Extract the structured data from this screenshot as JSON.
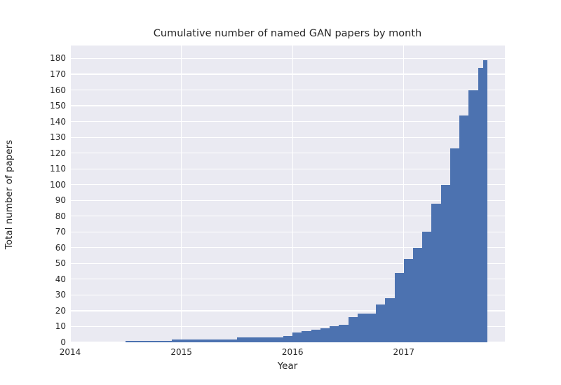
{
  "figure": {
    "kind": "matplotlib-seaborn-darkgrid",
    "background_color": "#ffffff",
    "plot_background_color": "#eaeaf2",
    "grid_color": "#ffffff",
    "text_color": "#262626"
  },
  "chart_data": {
    "type": "area",
    "subtype": "cumulative-monthly-step",
    "title": "Cumulative number of named GAN papers by month",
    "xlabel": "Year",
    "ylabel": "Total number of papers",
    "legend": null,
    "grid": true,
    "bar_color": "#4c72b0",
    "xlim": [
      2014,
      2017.909
    ],
    "ylim": [
      0,
      188.2
    ],
    "x_ticks": [
      2014,
      2015,
      2016,
      2017
    ],
    "y_ticks": [
      0,
      10,
      20,
      30,
      40,
      50,
      60,
      70,
      80,
      90,
      100,
      110,
      120,
      130,
      140,
      150,
      160,
      170,
      180
    ],
    "x_end": 2017.75,
    "points": [
      {
        "month": "2014-07",
        "x": 2014.5,
        "value": 1
      },
      {
        "month": "2014-12",
        "x": 2014.9167,
        "value": 2
      },
      {
        "month": "2015-07",
        "x": 2015.5,
        "value": 3
      },
      {
        "month": "2015-12",
        "x": 2015.9167,
        "value": 4
      },
      {
        "month": "2016-01",
        "x": 2016.0,
        "value": 6
      },
      {
        "month": "2016-02",
        "x": 2016.0833,
        "value": 7
      },
      {
        "month": "2016-03",
        "x": 2016.1667,
        "value": 8
      },
      {
        "month": "2016-04",
        "x": 2016.25,
        "value": 9
      },
      {
        "month": "2016-05",
        "x": 2016.3333,
        "value": 10
      },
      {
        "month": "2016-06",
        "x": 2016.4167,
        "value": 11
      },
      {
        "month": "2016-07",
        "x": 2016.5,
        "value": 16
      },
      {
        "month": "2016-08",
        "x": 2016.5833,
        "value": 18
      },
      {
        "month": "2016-10",
        "x": 2016.75,
        "value": 24
      },
      {
        "month": "2016-11",
        "x": 2016.8333,
        "value": 28
      },
      {
        "month": "2016-12",
        "x": 2016.9167,
        "value": 44
      },
      {
        "month": "2017-01",
        "x": 2017.0,
        "value": 53
      },
      {
        "month": "2017-02",
        "x": 2017.0833,
        "value": 60
      },
      {
        "month": "2017-03",
        "x": 2017.1667,
        "value": 70
      },
      {
        "month": "2017-04",
        "x": 2017.25,
        "value": 88
      },
      {
        "month": "2017-05",
        "x": 2017.3333,
        "value": 100
      },
      {
        "month": "2017-06",
        "x": 2017.4167,
        "value": 123
      },
      {
        "month": "2017-07",
        "x": 2017.5,
        "value": 144
      },
      {
        "month": "2017-08",
        "x": 2017.5833,
        "value": 160
      },
      {
        "month": "2017-09",
        "x": 2017.6667,
        "value": 174
      },
      {
        "month": "2017-09 (end)",
        "x": 2017.7167,
        "value": 179
      }
    ]
  }
}
